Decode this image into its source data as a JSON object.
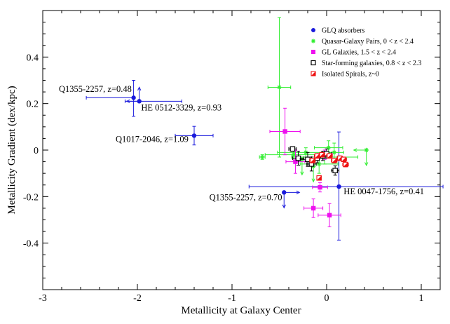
{
  "chart_data": {
    "type": "scatter",
    "title": "",
    "xlabel": "Metallicity at Galaxy Center",
    "ylabel": "Metallicity Gradient (dex/kpc)",
    "xlim": [
      -3,
      1.2
    ],
    "ylim": [
      -0.6,
      0.6
    ],
    "xticks": [
      -3,
      -2,
      -1,
      0,
      1
    ],
    "xtick_labels": [
      "-3",
      "-2",
      "-1",
      "0",
      "1"
    ],
    "yticks": [
      -0.4,
      -0.2,
      0,
      0.2,
      0.4
    ],
    "ytick_labels": [
      "-0.4",
      "-0.2",
      "0",
      "0.2",
      "0.4"
    ],
    "grid": false,
    "legend_position": "top-right",
    "series": [
      {
        "name": "GLQ absorbers",
        "marker": "filled-circle",
        "color": "#1a1adc",
        "points": [
          {
            "x": -2.04,
            "y": 0.225,
            "xlo": 0.5,
            "xhi": 0.0,
            "ylo": 0.08,
            "yhi": 0.075
          },
          {
            "x": -1.98,
            "y": 0.21,
            "xlo": 0.15,
            "xhi": 0.45,
            "ylo": 0.0,
            "yhi": 0.0,
            "xarrow": "left",
            "yarrow": "up"
          },
          {
            "x": -1.4,
            "y": 0.062,
            "xlo": 0.2,
            "xhi": 0.2,
            "ylo": 0.04,
            "yhi": 0.04
          },
          {
            "x": -0.45,
            "y": -0.182,
            "xlo": 0.0,
            "xhi": 0.0,
            "ylo": 0.0,
            "yhi": 0.0,
            "xarrow": "right",
            "yarrow": "down"
          },
          {
            "x": 0.13,
            "y": -0.157,
            "xlo": 0.95,
            "xhi": 1.1,
            "ylo": 0.23,
            "yhi": 0.235
          }
        ]
      },
      {
        "name": "Quasar-Galaxy Pairs, 0 < z < 2.4",
        "marker": "asterisk",
        "color": "#33ee33",
        "points": [
          {
            "x": -0.5,
            "y": 0.27,
            "xlo": 0.12,
            "xhi": 0.12,
            "ylo": 0.3,
            "yhi": 0.3
          },
          {
            "x": -0.68,
            "y": -0.03,
            "xlo": 0.03,
            "xhi": 0.03,
            "ylo": 0.01,
            "yhi": 0.01
          },
          {
            "x": -0.35,
            "y": -0.02,
            "xlo": 0.3,
            "xhi": 0.3,
            "ylo": 0.03,
            "yhi": 0.03
          },
          {
            "x": -0.22,
            "y": -0.01,
            "xlo": 0.3,
            "xhi": 0.3,
            "ylo": 0.02,
            "yhi": 0.02
          },
          {
            "x": -0.08,
            "y": -0.06,
            "xlo": 0.2,
            "xhi": 0.2,
            "ylo": 0.04,
            "yhi": 0.04
          },
          {
            "x": -0.02,
            "y": -0.03,
            "xlo": 0.35,
            "xhi": 0.35,
            "ylo": 0.03,
            "yhi": 0.03
          },
          {
            "x": 0.02,
            "y": 0.01,
            "xlo": 0.15,
            "xhi": 0.15,
            "ylo": 0.03,
            "yhi": 0.03
          },
          {
            "x": 0.08,
            "y": -0.01,
            "xlo": 0.1,
            "xhi": 0.1,
            "ylo": 0.04,
            "yhi": 0.04
          },
          {
            "x": -0.26,
            "y": -0.04,
            "xlo": 0.0,
            "xhi": 0.0,
            "ylo": 0.0,
            "yhi": 0.0,
            "yarrow": "down"
          },
          {
            "x": -0.14,
            "y": -0.07,
            "xlo": 0.0,
            "xhi": 0.0,
            "ylo": 0.0,
            "yhi": 0.0,
            "yarrow": "down"
          },
          {
            "x": 0.42,
            "y": 0.0,
            "xlo": 0.0,
            "xhi": 0.0,
            "ylo": 0.0,
            "yhi": 0.0,
            "xarrow": "left",
            "yarrow": "down"
          }
        ]
      },
      {
        "name": "GL Galaxies, 1.5 < z < 2.4",
        "marker": "filled-square",
        "color": "#ee11ee",
        "points": [
          {
            "x": -0.44,
            "y": 0.08,
            "xlo": 0.16,
            "xhi": 0.16,
            "ylo": 0.1,
            "yhi": 0.1
          },
          {
            "x": -0.33,
            "y": -0.05,
            "xlo": 0.1,
            "xhi": 0.1,
            "ylo": 0.05,
            "yhi": 0.05
          },
          {
            "x": -0.07,
            "y": -0.16,
            "xlo": 0.08,
            "xhi": 0.08,
            "ylo": 0.02,
            "yhi": 0.02
          },
          {
            "x": -0.14,
            "y": -0.25,
            "xlo": 0.1,
            "xhi": 0.1,
            "ylo": 0.04,
            "yhi": 0.04
          },
          {
            "x": 0.03,
            "y": -0.28,
            "xlo": 0.12,
            "xhi": 0.12,
            "ylo": 0.05,
            "yhi": 0.05
          },
          {
            "x": -0.02,
            "y": -0.02,
            "xlo": 0.08,
            "xhi": 0.08,
            "ylo": 0.02,
            "yhi": 0.02
          }
        ]
      },
      {
        "name": "Star-forming galaxies, 0.8 < z < 2.3",
        "marker": "open-square",
        "color": "#000000",
        "points": [
          {
            "x": -0.36,
            "y": 0.005,
            "xlo": 0.04,
            "xhi": 0.04,
            "ylo": 0.01,
            "yhi": 0.01
          },
          {
            "x": -0.3,
            "y": -0.035,
            "xlo": 0.06,
            "xhi": 0.06,
            "ylo": 0.03,
            "yhi": 0.03
          },
          {
            "x": -0.2,
            "y": -0.04,
            "xlo": 0.08,
            "xhi": 0.08,
            "ylo": 0.03,
            "yhi": 0.03
          },
          {
            "x": -0.16,
            "y": -0.06,
            "xlo": 0.05,
            "xhi": 0.05,
            "ylo": 0.03,
            "yhi": 0.03
          },
          {
            "x": -0.1,
            "y": -0.035,
            "xlo": 0.06,
            "xhi": 0.06,
            "ylo": 0.02,
            "yhi": 0.02
          },
          {
            "x": -0.04,
            "y": -0.025,
            "xlo": 0.05,
            "xhi": 0.05,
            "ylo": 0.02,
            "yhi": 0.02
          },
          {
            "x": 0.0,
            "y": -0.015,
            "xlo": 0.05,
            "xhi": 0.05,
            "ylo": 0.02,
            "yhi": 0.02
          },
          {
            "x": 0.09,
            "y": -0.088,
            "xlo": 0.04,
            "xhi": 0.04,
            "ylo": 0.02,
            "yhi": 0.02
          }
        ]
      },
      {
        "name": "Isolated Spirals, z~0",
        "marker": "half-filled-square",
        "color": "#ee1111",
        "points": [
          {
            "x": -0.15,
            "y": -0.045,
            "xlo": 0.03,
            "xhi": 0.03,
            "ylo": 0.01,
            "yhi": 0.01
          },
          {
            "x": -0.1,
            "y": -0.025,
            "xlo": 0.03,
            "xhi": 0.03,
            "ylo": 0.01,
            "yhi": 0.01
          },
          {
            "x": -0.08,
            "y": -0.12,
            "xlo": 0.02,
            "xhi": 0.02,
            "ylo": 0.005,
            "yhi": 0.005
          },
          {
            "x": -0.05,
            "y": -0.02,
            "xlo": 0.03,
            "xhi": 0.03,
            "ylo": 0.01,
            "yhi": 0.01
          },
          {
            "x": 0.03,
            "y": -0.025,
            "xlo": 0.03,
            "xhi": 0.03,
            "ylo": 0.01,
            "yhi": 0.01
          },
          {
            "x": 0.08,
            "y": -0.045,
            "xlo": 0.03,
            "xhi": 0.03,
            "ylo": 0.01,
            "yhi": 0.01
          },
          {
            "x": 0.14,
            "y": -0.035,
            "xlo": 0.03,
            "xhi": 0.03,
            "ylo": 0.01,
            "yhi": 0.01
          },
          {
            "x": 0.18,
            "y": -0.04,
            "xlo": 0.03,
            "xhi": 0.03,
            "ylo": 0.01,
            "yhi": 0.01
          },
          {
            "x": 0.2,
            "y": -0.062,
            "xlo": 0.03,
            "xhi": 0.03,
            "ylo": 0.01,
            "yhi": 0.01
          }
        ]
      }
    ],
    "annotations": [
      {
        "text": "Q1355-2257, z=0.48",
        "x": -2.06,
        "y": 0.25,
        "align": "end"
      },
      {
        "text": "HE 0512-3329, z=0.93",
        "x": -1.96,
        "y": 0.17,
        "align": "start"
      },
      {
        "text": "Q1017-2046, z=1.09",
        "x": -1.46,
        "y": 0.035,
        "align": "end"
      },
      {
        "text": "Q1355-2257, z=0.70",
        "x": -0.47,
        "y": -0.215,
        "align": "end"
      },
      {
        "text": "HE 0047-1756, z=0.41",
        "x": 0.18,
        "y": -0.19,
        "align": "start"
      }
    ]
  }
}
